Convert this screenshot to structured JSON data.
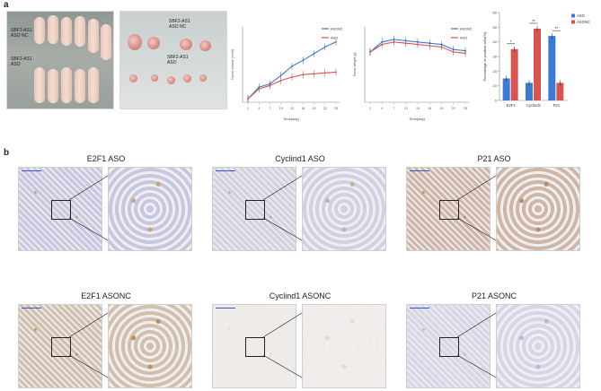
{
  "figure": {
    "panel_a_label": "a",
    "panel_b_label": "b"
  },
  "photos": {
    "mice_label_nc": "SBF2-AS1\nASO NC",
    "mice_label_aso": "SBF2-AS1\nASO",
    "tumor_label_nc": "SBF2-AS1\nASO NC",
    "tumor_label_aso": "SBF2-AS1\nASO"
  },
  "chart_data": [
    {
      "type": "line",
      "title": "",
      "xlabel": "Time(day)",
      "ylabel": "Tumor volume (mm3)",
      "x": [
        1,
        4,
        7,
        10,
        13,
        16,
        19,
        22,
        25
      ],
      "series": [
        {
          "name": "ASONC",
          "color": "#3a7bd5",
          "values": [
            20,
            90,
            110,
            160,
            215,
            250,
            290,
            330,
            360
          ]
        },
        {
          "name": "ASO",
          "color": "#d9534f",
          "values": [
            20,
            80,
            100,
            130,
            150,
            165,
            170,
            175,
            180
          ]
        }
      ],
      "ylim": [
        0,
        450
      ],
      "legend": "top-right"
    },
    {
      "type": "line",
      "title": "",
      "xlabel": "Time(day)",
      "ylabel": "Tumor weight (g)",
      "x": [
        1,
        4,
        7,
        10,
        13,
        16,
        19,
        22,
        25
      ],
      "series": [
        {
          "name": "ASONC",
          "color": "#3a7bd5",
          "values": [
            2.0,
            2.4,
            2.5,
            2.45,
            2.4,
            2.35,
            2.3,
            2.1,
            2.05
          ]
        },
        {
          "name": "ASO",
          "color": "#d9534f",
          "values": [
            2.0,
            2.3,
            2.4,
            2.35,
            2.3,
            2.25,
            2.2,
            2.0,
            1.95
          ]
        }
      ],
      "ylim": [
        0,
        3
      ],
      "legend": "top-right"
    },
    {
      "type": "bar",
      "title": "",
      "xlabel": "",
      "ylabel": "Percentage of positive cells(%)",
      "categories": [
        "E2F1",
        "Cyclind1",
        "P21"
      ],
      "series": [
        {
          "name": "ASO",
          "color": "#3a7bd5",
          "values": [
            15,
            12,
            44
          ]
        },
        {
          "name": "ASONC",
          "color": "#d9534f",
          "values": [
            35,
            49,
            12
          ]
        }
      ],
      "significance": [
        "*",
        "**",
        "**"
      ],
      "ylim": [
        0,
        60
      ],
      "yticks": [
        0,
        10,
        20,
        30,
        40,
        50,
        60
      ],
      "legend": "top-right"
    }
  ],
  "micrographs": [
    {
      "title": "E2F1 ASO",
      "tone": "#c7c7e0",
      "stain": "#c9a37a"
    },
    {
      "title": "Cyclind1 ASO",
      "tone": "#d3d0df",
      "stain": "#c7b0a0"
    },
    {
      "title": "P21 ASO",
      "tone": "#cfb7a4",
      "stain": "#b98a6a"
    },
    {
      "title": "E2F1 ASONC",
      "tone": "#d2c0aa",
      "stain": "#b8905e"
    },
    {
      "title": "Cyclind1 ASONC",
      "tone": "#f1ede6",
      "stain": "#e3dccf"
    },
    {
      "title": "P21 ASONC",
      "tone": "#d6d6e6",
      "stain": "#b9b9d6"
    }
  ]
}
